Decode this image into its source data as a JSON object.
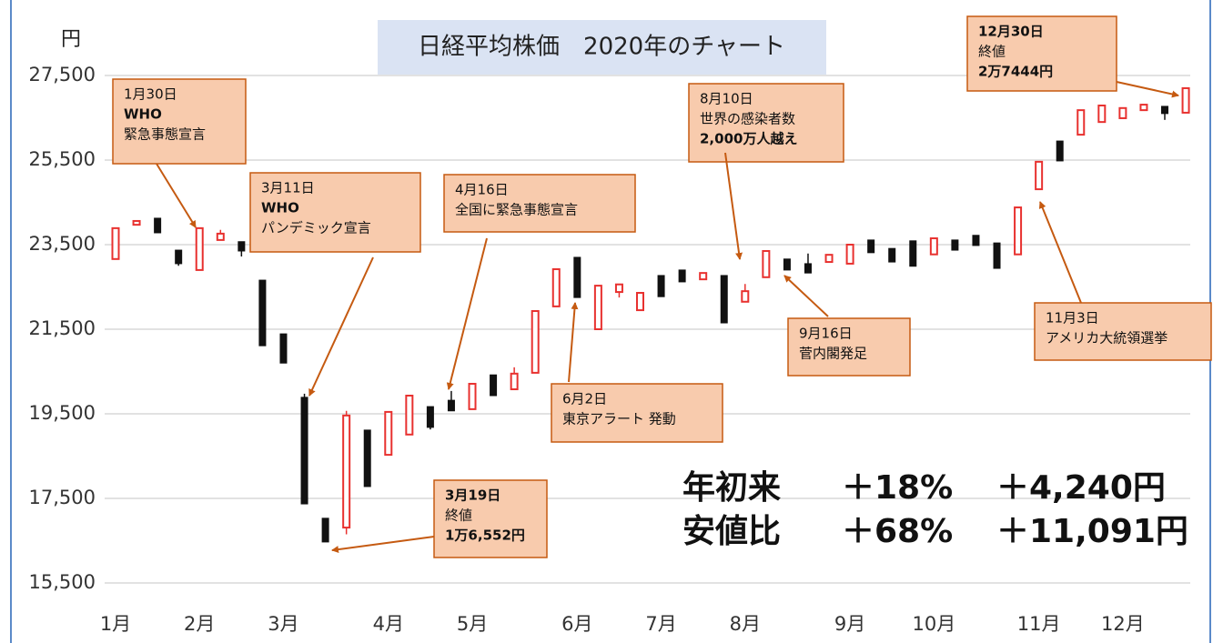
{
  "chart_data": {
    "type": "candlestick",
    "title": "日経平均株価　2020年のチャート",
    "y_label": "円",
    "categories": [
      "1月",
      null,
      null,
      null,
      "2月",
      null,
      null,
      null,
      "3月",
      null,
      null,
      null,
      null,
      "4月",
      null,
      null,
      null,
      "5月",
      null,
      null,
      null,
      null,
      "6月",
      null,
      null,
      null,
      "7月",
      null,
      null,
      null,
      "8月",
      null,
      null,
      null,
      null,
      "9月",
      null,
      null,
      null,
      "10月",
      null,
      null,
      null,
      null,
      "11月",
      null,
      null,
      null,
      "12月",
      null,
      null,
      null
    ],
    "open": [
      23160,
      23970,
      24125,
      23370,
      22900,
      23610,
      23570,
      22660,
      21390,
      19890,
      17030,
      16810,
      19115,
      18530,
      19010,
      19670,
      19820,
      19610,
      20420,
      20080,
      20470,
      22040,
      23200,
      21500,
      22380,
      21950,
      22770,
      22900,
      22680,
      22770,
      22150,
      22730,
      23160,
      23050,
      23090,
      23050,
      23610,
      23410,
      23590,
      23270,
      23610,
      23720,
      23540,
      23270,
      24810,
      25950,
      26100,
      26400,
      26490,
      26680,
      26770,
      26620
    ],
    "high": [
      23890,
      24060,
      24125,
      23370,
      23890,
      23850,
      23570,
      22660,
      21390,
      19975,
      17030,
      19570,
      19115,
      19545,
      19930,
      19670,
      20040,
      20210,
      20420,
      20600,
      21930,
      22920,
      23200,
      22530,
      22560,
      22360,
      22770,
      22900,
      22830,
      22770,
      22570,
      23350,
      23160,
      23290,
      23260,
      23500,
      23610,
      23410,
      23590,
      23650,
      23610,
      23720,
      23540,
      24380,
      25460,
      25950,
      26680,
      26790,
      26730,
      26810,
      26770,
      27200
    ],
    "low": [
      23160,
      23970,
      23780,
      23000,
      22900,
      23610,
      23220,
      21110,
      20700,
      17370,
      16470,
      16650,
      17780,
      18530,
      19010,
      19130,
      19570,
      19610,
      19930,
      20080,
      20470,
      22040,
      22250,
      21500,
      22250,
      21950,
      22270,
      22620,
      22680,
      21650,
      22150,
      22730,
      22900,
      22830,
      23090,
      23050,
      23310,
      23090,
      22990,
      23270,
      23370,
      23480,
      22940,
      23270,
      24810,
      25480,
      26100,
      26400,
      26490,
      26680,
      26450,
      26620
    ],
    "close": [
      23890,
      24060,
      23780,
      23050,
      23890,
      23760,
      23350,
      21110,
      20700,
      17370,
      16470,
      19460,
      17780,
      19545,
      19930,
      19180,
      19570,
      20210,
      19930,
      20450,
      21930,
      22920,
      22250,
      22530,
      22560,
      22360,
      22270,
      22620,
      22830,
      21650,
      22400,
      23350,
      22900,
      22830,
      23260,
      23500,
      23310,
      23090,
      22990,
      23650,
      23370,
      23480,
      22940,
      24380,
      25460,
      25480,
      26680,
      26790,
      26730,
      26810,
      26600,
      27200
    ],
    "up_color": "#e8312f",
    "down_color": "#111111",
    "ylim": [
      15500,
      28500
    ],
    "yticks": [
      {
        "value": 15500,
        "label": "15,500"
      },
      {
        "value": 17500,
        "label": "17,500"
      },
      {
        "value": 19500,
        "label": "19,500"
      },
      {
        "value": 21500,
        "label": "21,500"
      },
      {
        "value": 23500,
        "label": "23,500"
      },
      {
        "value": 25500,
        "label": "25,500"
      },
      {
        "value": 27500,
        "label": "27,500"
      }
    ],
    "grid": true,
    "annotations": [
      {
        "lines": [
          "1月30日",
          "WHO",
          "緊急事態宣言"
        ]
      },
      {
        "lines": [
          "3月11日",
          "WHO",
          "パンデミック宣言"
        ]
      },
      {
        "lines": [
          "4月16日",
          "全国に緊急事態宣言"
        ]
      },
      {
        "lines": [
          "6月2日",
          "東京アラート 発動"
        ]
      },
      {
        "lines": [
          "3月19日",
          "終値",
          "1万6,552円"
        ]
      },
      {
        "lines": [
          "8月10日",
          "世界の感染者数",
          "2,000万人越え"
        ]
      },
      {
        "lines": [
          "9月16日",
          "菅内閣発足"
        ]
      },
      {
        "lines": [
          "11月3日",
          "アメリカ大統領選挙"
        ]
      },
      {
        "lines": [
          "12月30日",
          "終値",
          "2万7444円"
        ]
      }
    ],
    "summary": [
      [
        "年初来",
        "＋18%",
        "＋4,240円"
      ],
      [
        "安値比",
        "＋68%",
        "＋11,091円"
      ]
    ]
  }
}
